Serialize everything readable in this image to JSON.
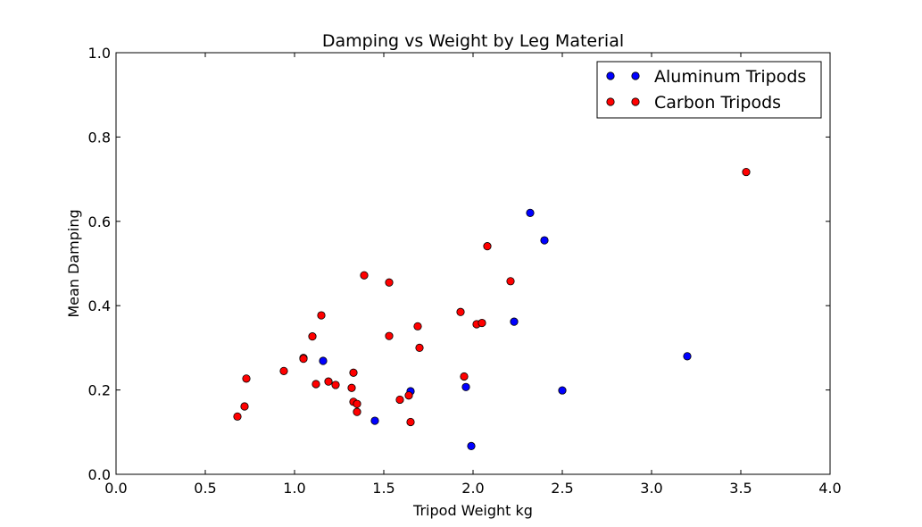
{
  "chart_data": {
    "type": "scatter",
    "title": "Damping vs Weight by Leg Material",
    "xlabel": "Tripod Weight kg",
    "ylabel": "Mean Damping",
    "xlim": [
      0.0,
      4.0
    ],
    "ylim": [
      0.0,
      1.0
    ],
    "xticks": [
      "0.0",
      "0.5",
      "1.0",
      "1.5",
      "2.0",
      "2.5",
      "3.0",
      "3.5",
      "4.0"
    ],
    "yticks": [
      "0.0",
      "0.2",
      "0.4",
      "0.6",
      "0.8",
      "1.0"
    ],
    "grid": false,
    "legend_position": "top-right",
    "series": [
      {
        "name": "Aluminum Tripods",
        "color": "#0000ff",
        "points": [
          [
            1.16,
            0.269
          ],
          [
            1.45,
            0.127
          ],
          [
            1.65,
            0.197
          ],
          [
            1.96,
            0.207
          ],
          [
            1.99,
            0.067
          ],
          [
            2.23,
            0.362
          ],
          [
            2.32,
            0.62
          ],
          [
            2.4,
            0.555
          ],
          [
            2.5,
            0.199
          ],
          [
            3.2,
            0.28
          ]
        ]
      },
      {
        "name": "Carbon Tripods",
        "color": "#ff0000",
        "points": [
          [
            0.68,
            0.137
          ],
          [
            0.72,
            0.161
          ],
          [
            0.73,
            0.227
          ],
          [
            0.94,
            0.245
          ],
          [
            1.05,
            0.276
          ],
          [
            1.05,
            0.274
          ],
          [
            1.1,
            0.327
          ],
          [
            1.12,
            0.214
          ],
          [
            1.15,
            0.377
          ],
          [
            1.19,
            0.22
          ],
          [
            1.23,
            0.212
          ],
          [
            1.32,
            0.205
          ],
          [
            1.33,
            0.172
          ],
          [
            1.33,
            0.241
          ],
          [
            1.35,
            0.167
          ],
          [
            1.35,
            0.148
          ],
          [
            1.39,
            0.472
          ],
          [
            1.53,
            0.455
          ],
          [
            1.53,
            0.328
          ],
          [
            1.59,
            0.177
          ],
          [
            1.64,
            0.187
          ],
          [
            1.65,
            0.124
          ],
          [
            1.69,
            0.351
          ],
          [
            1.7,
            0.3
          ],
          [
            1.93,
            0.385
          ],
          [
            1.95,
            0.232
          ],
          [
            2.02,
            0.356
          ],
          [
            2.05,
            0.359
          ],
          [
            2.08,
            0.541
          ],
          [
            2.21,
            0.458
          ],
          [
            3.53,
            0.717
          ]
        ]
      }
    ]
  }
}
